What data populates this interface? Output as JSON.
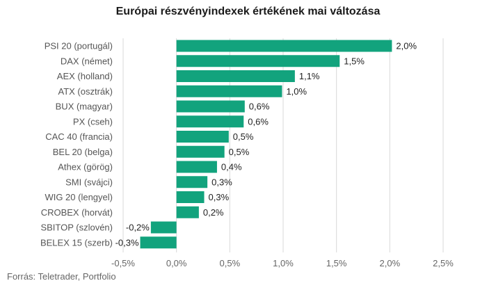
{
  "colors": {
    "bar": "#12a37d",
    "grid": "#d9d9d9",
    "text": "#555555"
  },
  "source": "Forrás: Teletrader, Portfolio",
  "chart_data": {
    "type": "bar",
    "orientation": "horizontal",
    "title": "Európai részvényindexek értékének mai változása",
    "categories": [
      "PSI 20 (portugál)",
      "DAX (német)",
      "AEX (holland)",
      "ATX (osztrák)",
      "BUX (magyar)",
      "PX (cseh)",
      "CAC 40 (francia)",
      "BEL 20 (belga)",
      "Athex (görög)",
      "SMI (svájci)",
      "WIG 20 (lengyel)",
      "CROBEX (horvát)",
      "SBITOP (szlovén)",
      "BELEX 15 (szerb)"
    ],
    "values": [
      2.02,
      1.53,
      1.11,
      0.99,
      0.64,
      0.63,
      0.49,
      0.45,
      0.38,
      0.29,
      0.26,
      0.21,
      -0.24,
      -0.34
    ],
    "value_labels": [
      "2,0%",
      "1,5%",
      "1,1%",
      "1,0%",
      "0,6%",
      "0,6%",
      "0,5%",
      "0,5%",
      "0,4%",
      "0,3%",
      "0,3%",
      "0,2%",
      "-0,2%",
      "-0,3%"
    ],
    "xlim": [
      -0.5,
      2.5
    ],
    "xticks": [
      -0.5,
      0,
      0.5,
      1.0,
      1.5,
      2.0,
      2.5
    ],
    "xtick_labels": [
      "-0,5%",
      "0,0%",
      "0,5%",
      "1,0%",
      "1,5%",
      "2,0%",
      "2,5%"
    ],
    "xlabel": "",
    "ylabel": "",
    "grid": true,
    "legend": "none"
  }
}
